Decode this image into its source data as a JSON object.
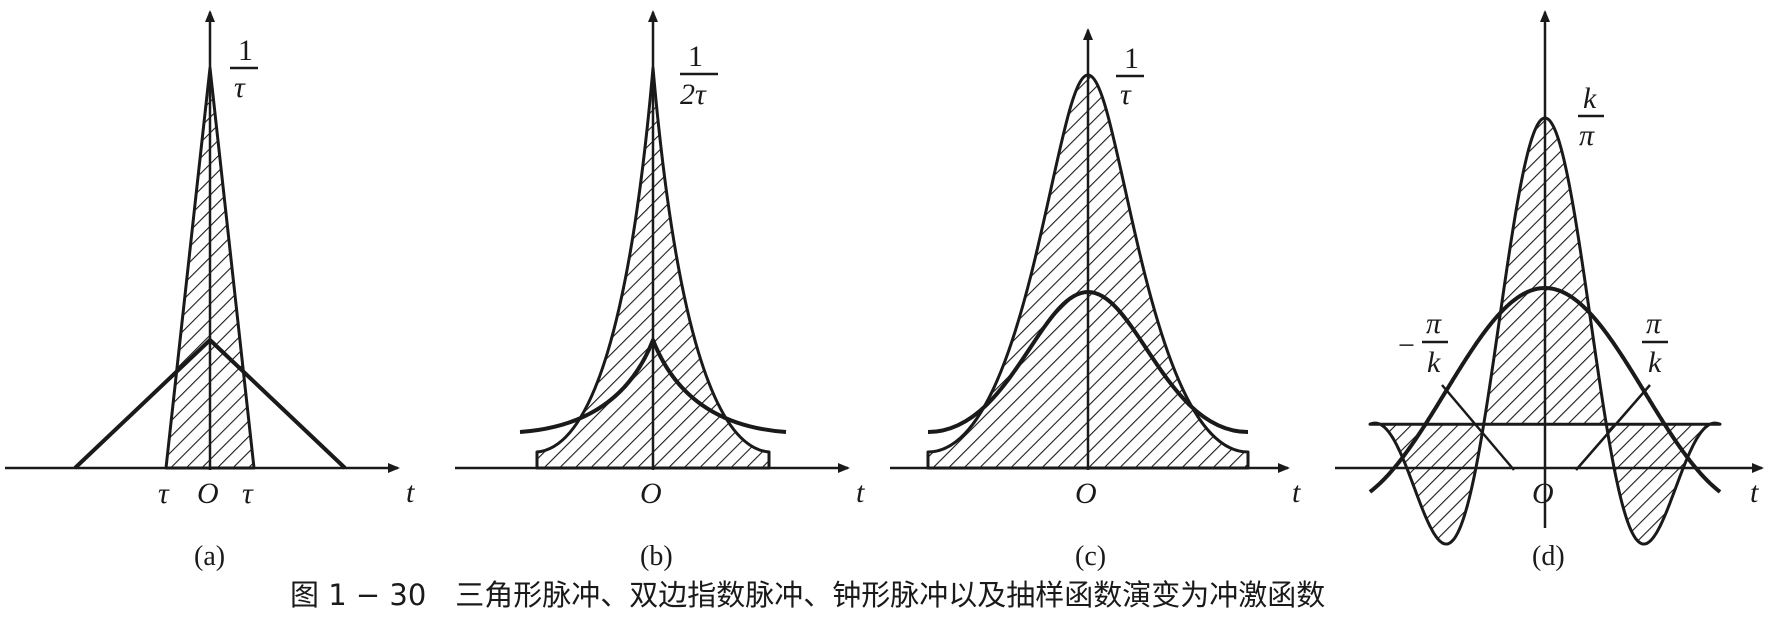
{
  "panels": {
    "a": {
      "peak_label_num": "1",
      "peak_label_den": "τ",
      "tick_left": "τ",
      "origin": "O",
      "tick_right": "τ",
      "axis": "t",
      "sub": "(a)"
    },
    "b": {
      "peak_label_num": "1",
      "peak_label_den": "2τ",
      "origin": "O",
      "axis": "t",
      "sub": "(b)"
    },
    "c": {
      "peak_label_num": "1",
      "peak_label_den": "τ",
      "origin": "O",
      "axis": "t",
      "sub": "(c)"
    },
    "d": {
      "peak_label_num": "k",
      "peak_label_den": "π",
      "left_num": "π",
      "left_den": "k",
      "left_sign": "−",
      "right_num": "π",
      "right_den": "k",
      "origin": "O",
      "axis": "t",
      "sub": "(d)"
    }
  },
  "caption": "图 1 − 30　三角形脉冲、双边指数脉冲、钟形脉冲以及抽样函数演变为冲激函数"
}
